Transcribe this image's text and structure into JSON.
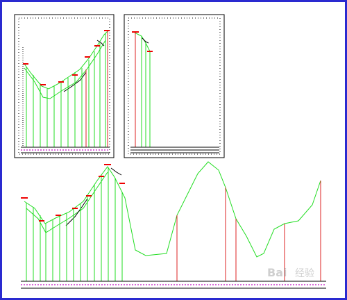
{
  "watermark": {
    "left": "Bai",
    "right": "经验"
  }
}
